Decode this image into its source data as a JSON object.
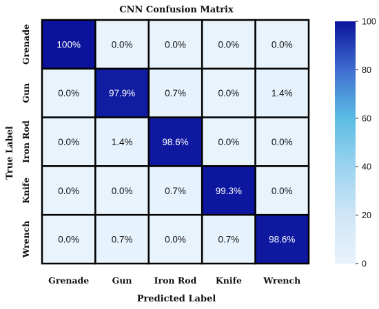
{
  "chart_data": {
    "type": "heatmap",
    "title": "CNN Confusion Matrix",
    "xlabel": "Predicted Label",
    "ylabel": "True Label",
    "x_categories": [
      "Grenade",
      "Gun",
      "Iron Rod",
      "Knife",
      "Wrench"
    ],
    "y_categories": [
      "Grenade",
      "Gun",
      "Iron Rod",
      "Knife",
      "Wrench"
    ],
    "values": [
      [
        100,
        0.0,
        0.0,
        0.0,
        0.0
      ],
      [
        0.0,
        97.9,
        0.7,
        0.0,
        1.4
      ],
      [
        0.0,
        1.4,
        98.6,
        0.0,
        0.0
      ],
      [
        0.0,
        0.0,
        0.7,
        99.3,
        0.0
      ],
      [
        0.0,
        0.7,
        0.0,
        0.7,
        98.6
      ]
    ],
    "cell_labels": [
      [
        "100%",
        "0.0%",
        "0.0%",
        "0.0%",
        "0.0%"
      ],
      [
        "0.0%",
        "97.9%",
        "0.7%",
        "0.0%",
        "1.4%"
      ],
      [
        "0.0%",
        "1.4%",
        "98.6%",
        "0.0%",
        "0.0%"
      ],
      [
        "0.0%",
        "0.0%",
        "0.7%",
        "99.3%",
        "0.0%"
      ],
      [
        "0.0%",
        "0.7%",
        "0.0%",
        "0.7%",
        "98.6%"
      ]
    ],
    "colorbar": {
      "range": [
        0,
        100
      ],
      "ticks": [
        0,
        20,
        40,
        60,
        80,
        100
      ],
      "colormap": "Blues-like"
    },
    "colors": {
      "low": "#e8f3fc",
      "low_mid": "#cfe6f7",
      "mid": "#9bd3ee",
      "mid_high": "#5cbde4",
      "high": "#3f6ed0",
      "max": "#0b139c",
      "grid": "#000000",
      "text_dark": "#111111",
      "text_light": "#ffffff"
    }
  }
}
